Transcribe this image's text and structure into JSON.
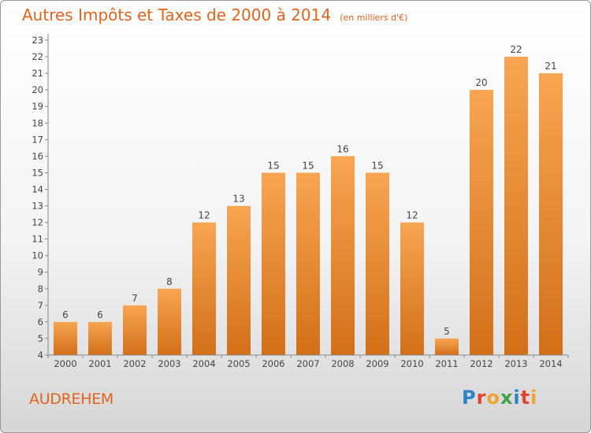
{
  "chart_data": {
    "type": "bar",
    "title": "Autres Impôts et Taxes de 2000 à 2014",
    "subtitle": "(en milliers d'€)",
    "categories": [
      "2000",
      "2001",
      "2002",
      "2003",
      "2004",
      "2005",
      "2006",
      "2007",
      "2008",
      "2009",
      "2010",
      "2011",
      "2012",
      "2013",
      "2014"
    ],
    "values": [
      6,
      6,
      7,
      8,
      12,
      13,
      15,
      15,
      16,
      15,
      12,
      5,
      20,
      22,
      21
    ],
    "xlabel": "",
    "ylabel": "",
    "ylim": [
      4,
      23
    ],
    "yticks": [
      4,
      5,
      6,
      7,
      8,
      9,
      10,
      11,
      12,
      13,
      14,
      15,
      16,
      17,
      18,
      19,
      20,
      21,
      22,
      23
    ],
    "grid": false,
    "colors": {
      "bar_light": "#f8a552",
      "bar_dark": "#d27019",
      "accent": "#e1641e"
    }
  },
  "footer": {
    "place": "AUDREHEM",
    "logo": [
      "P",
      "r",
      "o",
      "x",
      "i",
      "t",
      "i"
    ]
  }
}
